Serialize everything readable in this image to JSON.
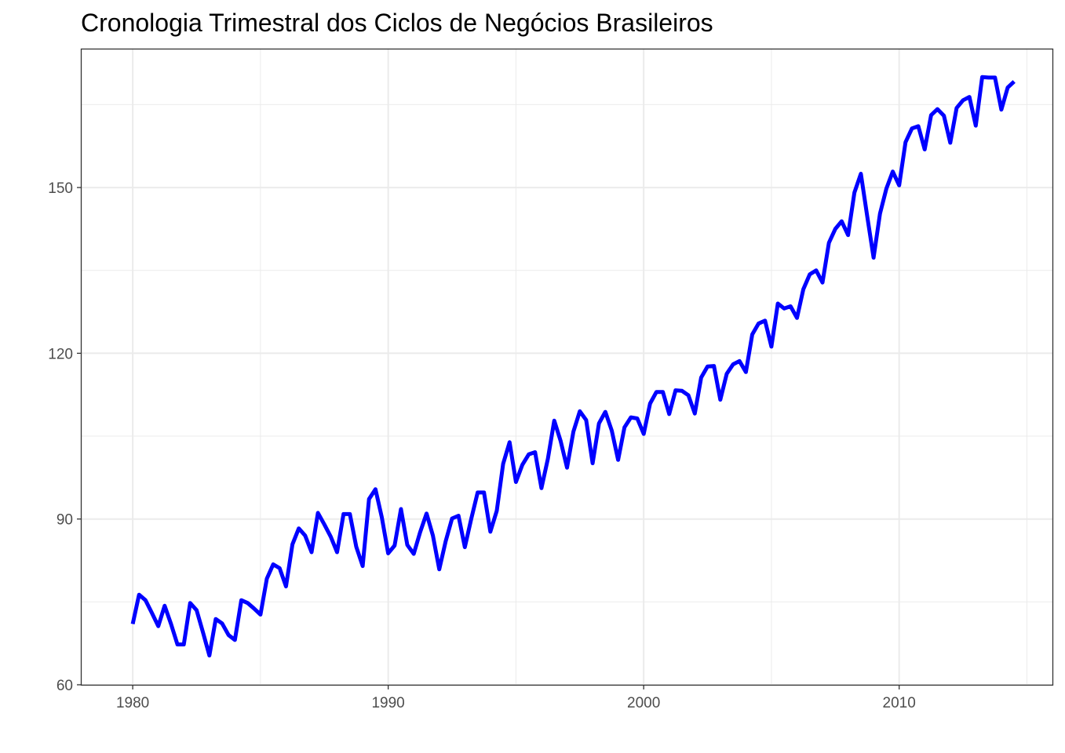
{
  "chart_data": {
    "type": "line",
    "title": "Cronologia Trimestral dos Ciclos de Negócios Brasileiros",
    "xlabel": "",
    "ylabel": "",
    "xlim": [
      1978.0,
      2016.0
    ],
    "ylim": [
      60,
      175
    ],
    "x_ticks": [
      1980,
      1990,
      2000,
      2010
    ],
    "x_tick_labels": [
      "1980",
      "1990",
      "2000",
      "2010"
    ],
    "y_ticks": [
      60,
      90,
      120,
      150
    ],
    "y_tick_labels": [
      "60",
      "90",
      "120",
      "150"
    ],
    "grid": true,
    "legend": "none",
    "series": [
      {
        "color": "#0000ff",
        "x": [
          1980.0,
          1980.25,
          1980.5,
          1980.75,
          1981.0,
          1981.25,
          1981.5,
          1981.75,
          1982.0,
          1982.25,
          1982.5,
          1982.75,
          1983.0,
          1983.25,
          1983.5,
          1983.75,
          1984.0,
          1984.25,
          1984.5,
          1984.75,
          1985.0,
          1985.25,
          1985.5,
          1985.75,
          1986.0,
          1986.25,
          1986.5,
          1986.75,
          1987.0,
          1987.25,
          1987.5,
          1987.75,
          1988.0,
          1988.25,
          1988.5,
          1988.75,
          1989.0,
          1989.25,
          1989.5,
          1989.75,
          1990.0,
          1990.25,
          1990.5,
          1990.75,
          1991.0,
          1991.25,
          1991.5,
          1991.75,
          1992.0,
          1992.25,
          1992.5,
          1992.75,
          1993.0,
          1993.25,
          1993.5,
          1993.75,
          1994.0,
          1994.25,
          1994.5,
          1994.75,
          1995.0,
          1995.25,
          1995.5,
          1995.75,
          1996.0,
          1996.25,
          1996.5,
          1996.75,
          1997.0,
          1997.25,
          1997.5,
          1997.75,
          1998.0,
          1998.25,
          1998.5,
          1998.75,
          1999.0,
          1999.25,
          1999.5,
          1999.75,
          2000.0,
          2000.25,
          2000.5,
          2000.75,
          2001.0,
          2001.25,
          2001.5,
          2001.75,
          2002.0,
          2002.25,
          2002.5,
          2002.75,
          2003.0,
          2003.25,
          2003.5,
          2003.75,
          2004.0,
          2004.25,
          2004.5,
          2004.75,
          2005.0,
          2005.25,
          2005.5,
          2005.75,
          2006.0,
          2006.25,
          2006.5,
          2006.75,
          2007.0,
          2007.25,
          2007.5,
          2007.75,
          2008.0,
          2008.25,
          2008.5,
          2008.75,
          2009.0,
          2009.25,
          2009.5,
          2009.75,
          2010.0,
          2010.25,
          2010.5,
          2010.75,
          2011.0,
          2011.25,
          2011.5,
          2011.75,
          2012.0,
          2012.25,
          2012.5,
          2012.75,
          2013.0,
          2013.25,
          2013.5,
          2013.75,
          2014.0,
          2014.25,
          2014.5
        ],
        "y": [
          71.0,
          76.3,
          75.3,
          73.0,
          70.6,
          74.3,
          71.0,
          67.3,
          67.3,
          74.8,
          73.5,
          69.5,
          65.3,
          71.9,
          71.1,
          69.0,
          68.1,
          75.3,
          74.8,
          73.8,
          72.7,
          79.2,
          81.8,
          81.1,
          77.8,
          85.4,
          88.3,
          87.0,
          84.0,
          91.1,
          89.0,
          86.8,
          84.0,
          90.9,
          90.9,
          85.0,
          81.5,
          93.6,
          95.4,
          90.3,
          83.8,
          85.2,
          91.8,
          85.3,
          83.7,
          87.6,
          91.0,
          87.0,
          80.9,
          86.0,
          90.1,
          90.6,
          84.9,
          90.0,
          94.8,
          94.8,
          87.7,
          91.5,
          100.0,
          103.9,
          96.7,
          99.8,
          101.7,
          102.1,
          95.6,
          100.9,
          107.8,
          104.1,
          99.3,
          105.8,
          109.5,
          107.9,
          100.1,
          107.3,
          109.4,
          106.0,
          100.7,
          106.6,
          108.4,
          108.2,
          105.4,
          110.9,
          113.0,
          113.0,
          109.0,
          113.3,
          113.2,
          112.4,
          109.1,
          115.6,
          117.6,
          117.7,
          111.6,
          116.3,
          118.0,
          118.6,
          116.6,
          123.4,
          125.4,
          125.9,
          121.2,
          129.0,
          128.1,
          128.5,
          126.4,
          131.6,
          134.3,
          135.0,
          132.8,
          140.0,
          142.5,
          143.9,
          141.4,
          149.1,
          152.5,
          144.8,
          137.3,
          145.3,
          149.8,
          152.9,
          150.4,
          158.2,
          160.7,
          161.1,
          156.9,
          163.1,
          164.2,
          163.0,
          158.1,
          164.4,
          165.8,
          166.4,
          161.2,
          170.0,
          169.9,
          169.9,
          164.1,
          168.1,
          169.2
        ]
      }
    ]
  }
}
